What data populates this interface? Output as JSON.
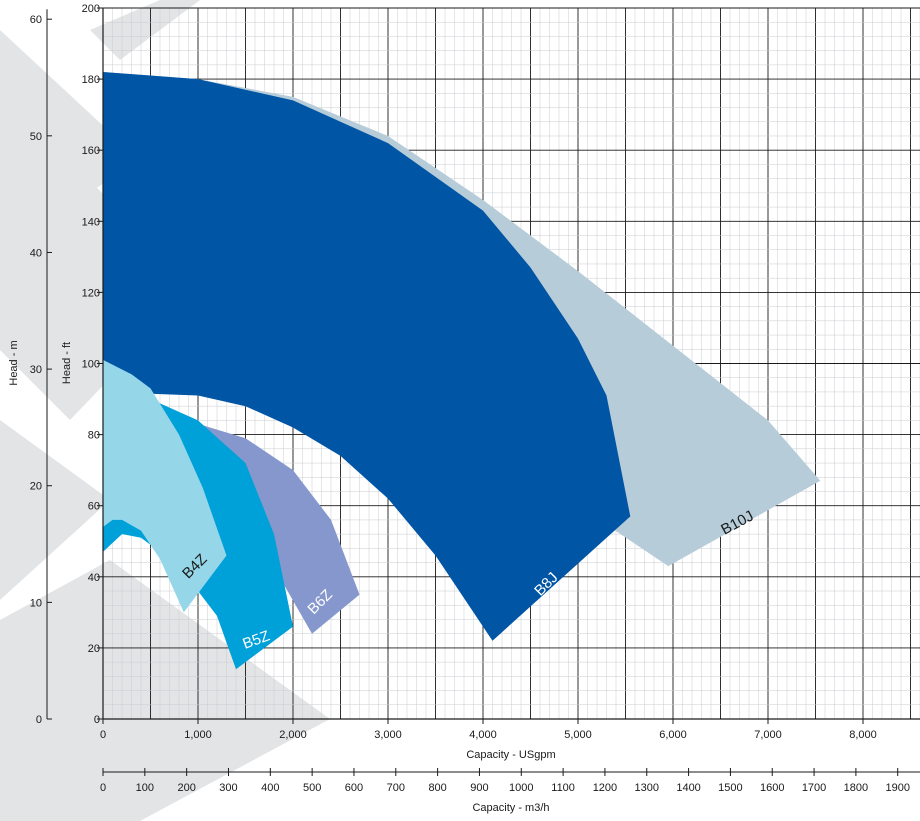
{
  "chart_data": {
    "type": "area",
    "x_primary": {
      "label": "Capacity - USgpm",
      "range": [
        0,
        8600
      ],
      "ticks": [
        0,
        1000,
        2000,
        3000,
        4000,
        5000,
        6000,
        7000,
        8000
      ],
      "tick_labels": [
        "0",
        "1,000",
        "2,000",
        "3,000",
        "4,000",
        "5,000",
        "6,000",
        "7,000",
        "8,000"
      ]
    },
    "x_secondary": {
      "label": "Capacity - m3/h",
      "ticks": [
        0,
        100,
        200,
        300,
        400,
        500,
        600,
        700,
        800,
        900,
        1000,
        1100,
        1200,
        1300,
        1400,
        1500,
        1600,
        1700,
        1800,
        1900
      ],
      "tick_labels": [
        "0",
        "100",
        "200",
        "300",
        "400",
        "500",
        "600",
        "700",
        "800",
        "900",
        "1000",
        "1100",
        "1200",
        "1300",
        "1400",
        "1500",
        "1600",
        "1700",
        "1800",
        "1900"
      ]
    },
    "y_primary": {
      "label": "Head - ft",
      "range": [
        0,
        200
      ],
      "ticks": [
        0,
        20,
        40,
        60,
        80,
        100,
        120,
        140,
        160,
        180,
        200
      ],
      "tick_labels": [
        "0",
        "20",
        "40",
        "60",
        "80",
        "100",
        "120",
        "140",
        "160",
        "180",
        "200"
      ]
    },
    "y_secondary": {
      "label": "Head - m",
      "ticks": [
        0,
        10,
        20,
        30,
        40,
        50,
        60
      ],
      "tick_labels": [
        "0",
        "10",
        "20",
        "30",
        "40",
        "50",
        "60"
      ]
    },
    "grid": true,
    "legend": "none",
    "series": [
      {
        "name": "B10J",
        "color": "#b7ccd9",
        "upper": [
          [
            0,
            182
          ],
          [
            1000,
            180
          ],
          [
            2000,
            175
          ],
          [
            3000,
            164
          ],
          [
            4000,
            146
          ],
          [
            5000,
            126
          ],
          [
            6000,
            105
          ],
          [
            7000,
            84
          ],
          [
            7550,
            67
          ]
        ],
        "lower": [
          [
            5950,
            43
          ],
          [
            5000,
            60
          ],
          [
            4000,
            85
          ],
          [
            3000,
            112
          ],
          [
            2500,
            124
          ],
          [
            2000,
            135
          ],
          [
            1500,
            145
          ],
          [
            1000,
            152
          ],
          [
            500,
            158
          ],
          [
            0,
            160
          ]
        ]
      },
      {
        "name": "B8J",
        "color": "#0055a5",
        "upper": [
          [
            0,
            182
          ],
          [
            1000,
            180
          ],
          [
            2000,
            174
          ],
          [
            3000,
            162
          ],
          [
            4000,
            143
          ],
          [
            4500,
            127
          ],
          [
            5000,
            107
          ],
          [
            5300,
            91
          ],
          [
            5550,
            57
          ]
        ],
        "lower": [
          [
            4100,
            22
          ],
          [
            3500,
            46
          ],
          [
            3000,
            62
          ],
          [
            2500,
            74
          ],
          [
            2000,
            82
          ],
          [
            1500,
            88
          ],
          [
            1000,
            91
          ],
          [
            500,
            91.5
          ],
          [
            0,
            91.5
          ]
        ]
      },
      {
        "name": "B6Z",
        "color": "#8597cd",
        "upper": [
          [
            1000,
            83
          ],
          [
            1500,
            79
          ],
          [
            2000,
            70
          ],
          [
            2400,
            56
          ],
          [
            2700,
            35
          ]
        ],
        "lower": [
          [
            2200,
            24
          ],
          [
            1900,
            38
          ],
          [
            1600,
            53
          ],
          [
            1300,
            66
          ],
          [
            1000,
            74
          ]
        ]
      },
      {
        "name": "B5Z",
        "color": "#00a0d9",
        "upper": [
          [
            0,
            90
          ],
          [
            500,
            90
          ],
          [
            1000,
            84
          ],
          [
            1500,
            72
          ],
          [
            1800,
            52
          ],
          [
            2000,
            26
          ]
        ],
        "lower": [
          [
            1400,
            14
          ],
          [
            1200,
            29
          ],
          [
            1000,
            36
          ],
          [
            700,
            45
          ],
          [
            400,
            51
          ],
          [
            200,
            52
          ],
          [
            0,
            47
          ]
        ]
      },
      {
        "name": "B4Z",
        "color": "#95d7e9",
        "upper": [
          [
            0,
            101
          ],
          [
            300,
            97
          ],
          [
            500,
            93
          ],
          [
            800,
            80
          ],
          [
            1050,
            65
          ],
          [
            1300,
            46
          ]
        ],
        "lower": [
          [
            850,
            30
          ],
          [
            600,
            45
          ],
          [
            400,
            53
          ],
          [
            200,
            56
          ],
          [
            100,
            56
          ],
          [
            0,
            54
          ]
        ]
      }
    ],
    "series_labels": [
      {
        "text": "B10J",
        "at": [
          6700,
          54
        ],
        "rotate": -28,
        "color": "#1a1a1a"
      },
      {
        "text": "B8J",
        "at": [
          4700,
          37
        ],
        "rotate": -45,
        "color": "#ffffff"
      },
      {
        "text": "B6Z",
        "at": [
          2320,
          32
        ],
        "rotate": -45,
        "color": "#ffffff"
      },
      {
        "text": "B5Z",
        "at": [
          1630,
          21
        ],
        "rotate": -20,
        "color": "#ffffff"
      },
      {
        "text": "B4Z",
        "at": [
          1000,
          42
        ],
        "rotate": -45,
        "color": "#1a1a1a"
      }
    ]
  }
}
